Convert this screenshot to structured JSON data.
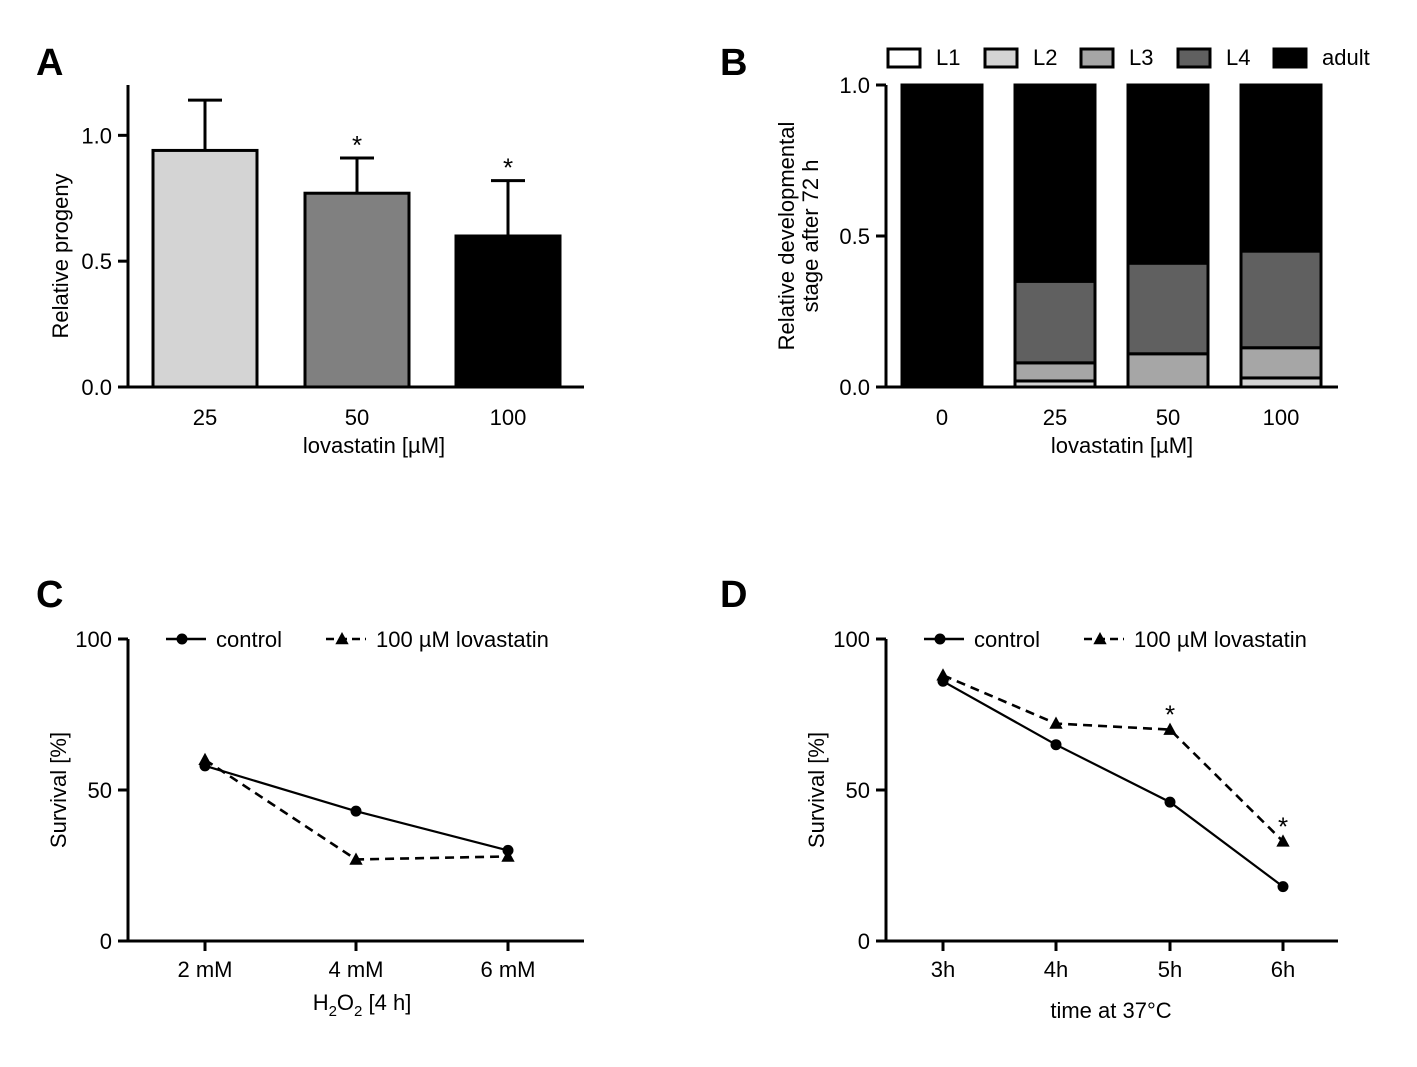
{
  "chart_data": [
    {
      "panel": "A",
      "type": "bar",
      "categories": [
        "25",
        "50",
        "100"
      ],
      "values": [
        0.94,
        0.77,
        0.6
      ],
      "errors": [
        0.2,
        0.14,
        0.22
      ],
      "significance": [
        "",
        "*",
        "*"
      ],
      "colors": [
        "#d4d4d4",
        "#808080",
        "#000000"
      ],
      "xlabel": "lovastatin [µM]",
      "ylabel": "Relative progeny",
      "ylim": [
        0,
        1.2
      ],
      "yticks": [
        "0.0",
        "0.5",
        "1.0"
      ],
      "yticks_values": [
        0,
        0.5,
        1.0
      ],
      "grid": false,
      "legend": "none"
    },
    {
      "panel": "B",
      "type": "bar",
      "stacked": true,
      "categories": [
        "0",
        "25",
        "50",
        "100"
      ],
      "series": [
        {
          "name": "L1",
          "color": "#ffffff",
          "values": [
            0.0,
            0.0,
            0.0,
            0.0
          ]
        },
        {
          "name": "L2",
          "color": "#d4d4d4",
          "values": [
            0.0,
            0.02,
            0.0,
            0.03
          ]
        },
        {
          "name": "L3",
          "color": "#a6a6a6",
          "values": [
            0.0,
            0.06,
            0.11,
            0.1
          ]
        },
        {
          "name": "L4",
          "color": "#606060",
          "values": [
            0.0,
            0.27,
            0.3,
            0.32
          ]
        },
        {
          "name": "adult",
          "color": "#000000",
          "values": [
            1.0,
            0.65,
            0.59,
            0.55
          ]
        }
      ],
      "xlabel": "lovastatin [µM]",
      "ylabel": [
        "Relative developmental",
        "stage after 72 h"
      ],
      "ylim": [
        0,
        1.0
      ],
      "yticks": [
        "0.0",
        "0.5",
        "1.0"
      ],
      "yticks_values": [
        0,
        0.5,
        1.0
      ],
      "grid": false,
      "legend": "top"
    },
    {
      "panel": "C",
      "type": "line",
      "categories": [
        "2 mM",
        "4 mM",
        "6 mM"
      ],
      "series": [
        {
          "name": "control",
          "marker": "circle",
          "dash": false,
          "values": [
            58,
            43,
            30
          ],
          "significance": [
            "",
            "",
            ""
          ]
        },
        {
          "name": "100 µM lovastatin",
          "marker": "triangle",
          "dash": true,
          "values": [
            60,
            27,
            28
          ],
          "significance": [
            "",
            "",
            ""
          ]
        }
      ],
      "xlabel": {
        "pre": "H",
        "sub1": "2",
        "mid": "O",
        "sub2": "2",
        "post": " [4 h]"
      },
      "ylabel": "Survival [%]",
      "ylim": [
        0,
        100
      ],
      "yticks": [
        "0",
        "50",
        "100"
      ],
      "yticks_values": [
        0,
        50,
        100
      ],
      "grid": false,
      "legend": "top"
    },
    {
      "panel": "D",
      "type": "line",
      "categories": [
        "3h",
        "4h",
        "5h",
        "6h"
      ],
      "series": [
        {
          "name": "control",
          "marker": "circle",
          "dash": false,
          "values": [
            86,
            65,
            46,
            18
          ],
          "significance": [
            "",
            "",
            "",
            ""
          ]
        },
        {
          "name": "100 µM lovastatin",
          "marker": "triangle",
          "dash": true,
          "values": [
            88,
            72,
            70,
            33
          ],
          "significance": [
            "",
            "",
            "*",
            "*"
          ]
        }
      ],
      "xlabel": "time at 37°C",
      "ylabel": "Survival [%]",
      "ylim": [
        0,
        100
      ],
      "yticks": [
        "0",
        "50",
        "100"
      ],
      "yticks_values": [
        0,
        50,
        100
      ],
      "grid": false,
      "legend": "top"
    }
  ]
}
